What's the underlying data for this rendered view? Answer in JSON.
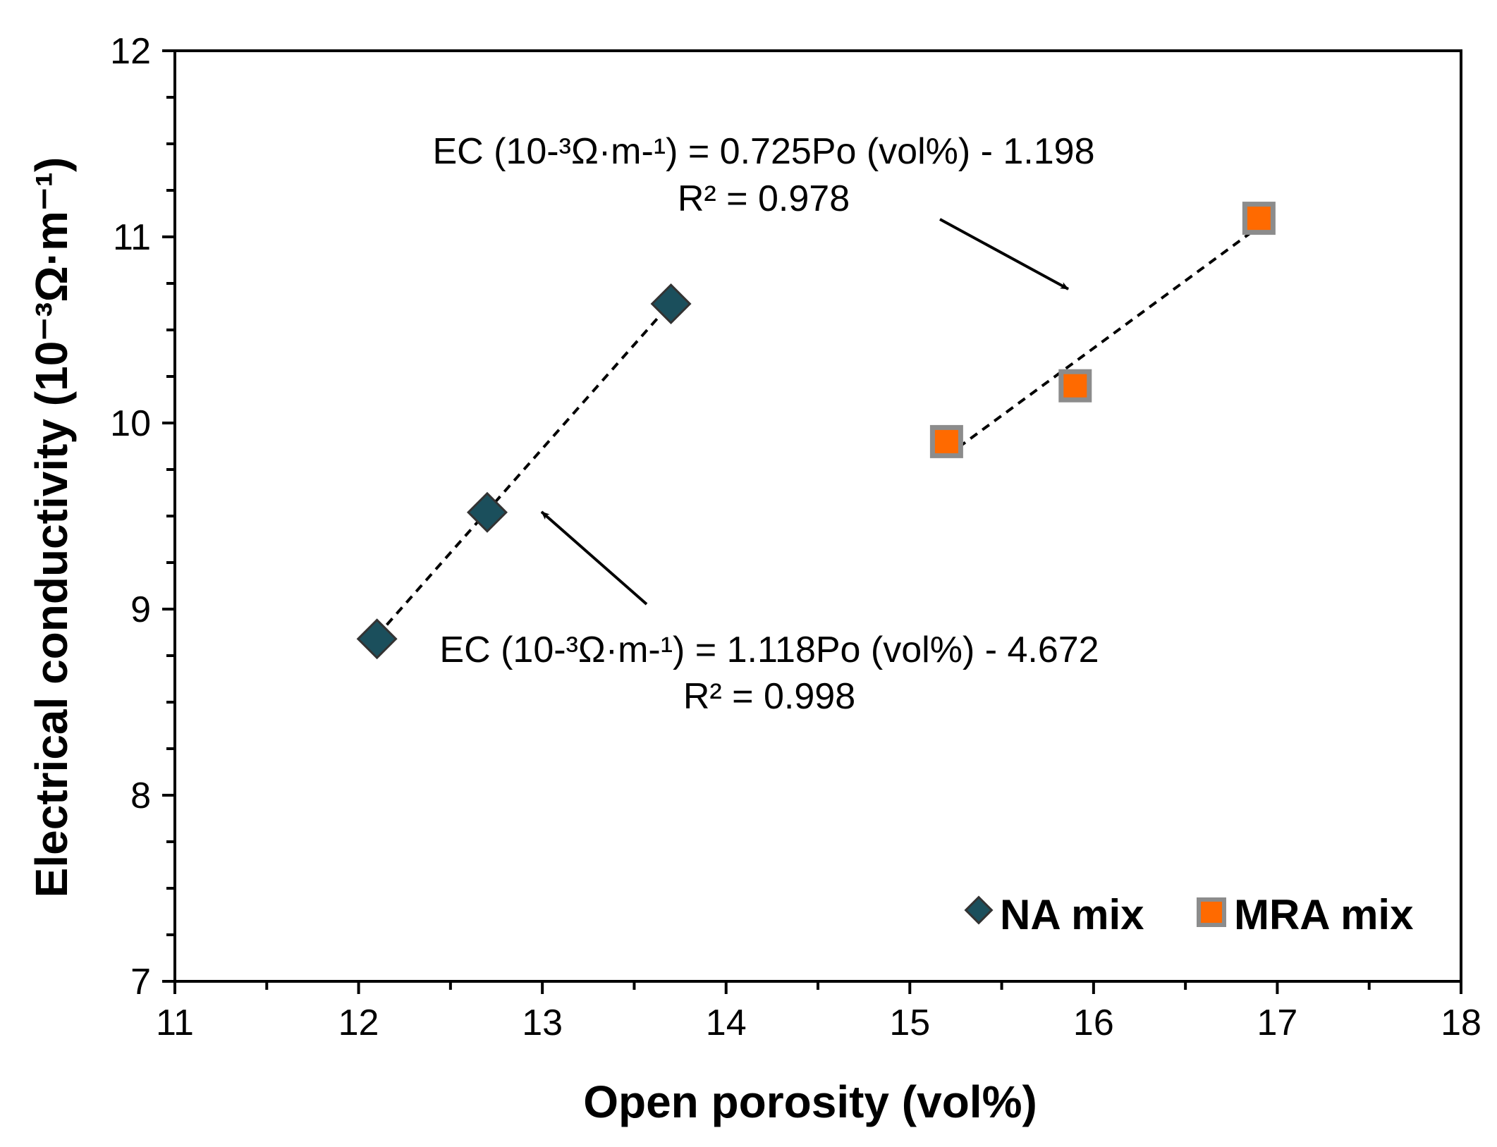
{
  "chart_data": {
    "type": "scatter",
    "xlabel": "Open porosity (vol%)",
    "ylabel": "Electrical conductivity  (10⁻³Ω·m⁻¹)",
    "xlim": [
      11,
      18
    ],
    "ylim": [
      7,
      12
    ],
    "x_ticks": [
      "11",
      "12",
      "13",
      "14",
      "15",
      "16",
      "17",
      "18"
    ],
    "y_ticks": [
      "7",
      "8",
      "9",
      "10",
      "11",
      "12"
    ],
    "grid": false,
    "legend_position": "bottom-right",
    "colors": {
      "na_fill": "#1b4f5c",
      "mra_fill": "#ff6a00",
      "mra_stroke": "#8c8c8c"
    },
    "series": [
      {
        "name": "NA mix",
        "marker": "diamond",
        "x": [
          12.1,
          12.7,
          13.7
        ],
        "y": [
          8.84,
          9.52,
          10.64
        ],
        "trendline": {
          "slope": 1.118,
          "intercept": -4.672,
          "r2": 0.998
        }
      },
      {
        "name": "MRA mix",
        "marker": "square",
        "x": [
          15.2,
          15.9,
          16.9
        ],
        "y": [
          9.9,
          10.2,
          11.1
        ],
        "trendline": {
          "slope": 0.725,
          "intercept": -1.198,
          "r2": 0.978
        }
      }
    ],
    "annotations": [
      {
        "equation": "EC (10-³Ω·m-¹) = 0.725Po (vol%) - 1.198",
        "r2_text": "R² = 0.978"
      },
      {
        "equation": "EC (10-³Ω·m-¹) = 1.118Po (vol%) - 4.672",
        "r2_text": "R² = 0.998"
      }
    ]
  }
}
